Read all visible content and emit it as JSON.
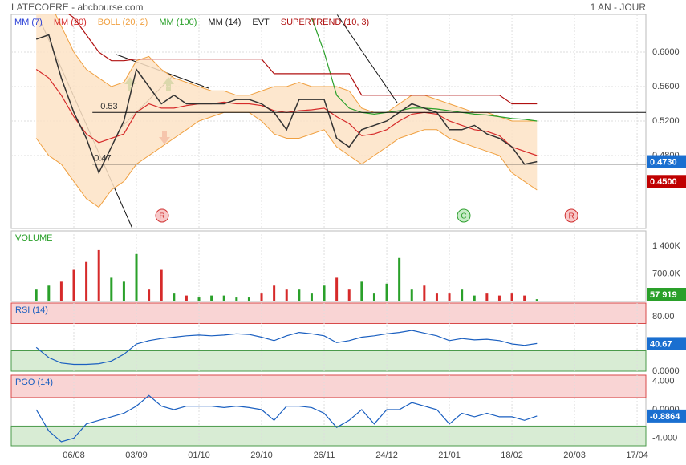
{
  "header": {
    "title": "LATECOERE - abcbourse.com",
    "period": "1 AN - JOUR"
  },
  "chart_data": [
    {
      "type": "line",
      "x": [
        8,
        12,
        16,
        20,
        24,
        28,
        32,
        36,
        40,
        44,
        48,
        52,
        56,
        60,
        64,
        68,
        72,
        76,
        80,
        84,
        88,
        92,
        96,
        100,
        104,
        108,
        112,
        116,
        120,
        124,
        128,
        132,
        136,
        140,
        144,
        148,
        152,
        156,
        160,
        164,
        168
      ],
      "xlim": [
        0,
        202.8
      ],
      "xticks": [
        {
          "value": 20,
          "label": "06/08"
        },
        {
          "value": 40,
          "label": "03/09"
        },
        {
          "value": 60,
          "label": "01/10"
        },
        {
          "value": 80,
          "label": "29/10"
        },
        {
          "value": 100,
          "label": "26/11"
        },
        {
          "value": 120,
          "label": "24/12"
        },
        {
          "value": 140,
          "label": "21/01"
        },
        {
          "value": 160,
          "label": "18/02"
        },
        {
          "value": 180,
          "label": "20/03"
        },
        {
          "value": 200,
          "label": "17/04"
        }
      ],
      "ylim": [
        0.3954,
        0.6437
      ],
      "yticks": [
        {
          "value": 0.6,
          "label": "0.6000"
        },
        {
          "value": 0.56,
          "label": "0.5600"
        },
        {
          "value": 0.52,
          "label": "0.5200"
        },
        {
          "value": 0.48,
          "label": "0.4800"
        }
      ],
      "grid": true,
      "price": {
        "color": "#333333",
        "values": [
          0.615,
          0.62,
          0.57,
          0.53,
          0.5,
          0.46,
          0.49,
          0.52,
          0.58,
          0.56,
          0.54,
          0.55,
          0.54,
          0.54,
          0.54,
          0.54,
          0.545,
          0.545,
          0.54,
          0.53,
          0.51,
          0.545,
          0.545,
          0.545,
          0.5,
          0.49,
          0.51,
          0.515,
          0.52,
          0.53,
          0.54,
          0.535,
          0.53,
          0.51,
          0.51,
          0.515,
          0.505,
          0.5,
          0.49,
          0.47,
          0.473
        ]
      },
      "series": [
        {
          "name": "MM (7)",
          "color": "#2a3fd6"
        },
        {
          "name": "MM (20)",
          "color": "#d62a2a",
          "values": [
            0.58,
            0.57,
            0.55,
            0.525,
            0.505,
            0.495,
            0.5,
            0.505,
            0.53,
            0.54,
            0.535,
            0.535,
            0.538,
            0.54,
            0.54,
            0.542,
            0.54,
            0.54,
            0.538,
            0.532,
            0.53,
            0.532,
            0.533,
            0.535,
            0.525,
            0.517,
            0.503,
            0.505,
            0.51,
            0.52,
            0.528,
            0.53,
            0.528,
            0.52,
            0.515,
            0.51,
            0.508,
            0.503,
            0.49,
            0.485,
            0.48
          ]
        },
        {
          "name": "BOLL (20, 2)",
          "color": "#f0a040",
          "upper": [
            0.66,
            0.66,
            0.63,
            0.6,
            0.58,
            0.57,
            0.56,
            0.565,
            0.59,
            0.595,
            0.58,
            0.57,
            0.565,
            0.56,
            0.555,
            0.555,
            0.55,
            0.55,
            0.555,
            0.56,
            0.56,
            0.565,
            0.56,
            0.56,
            0.56,
            0.555,
            0.535,
            0.53,
            0.53,
            0.54,
            0.55,
            0.55,
            0.545,
            0.54,
            0.535,
            0.53,
            0.53,
            0.525,
            0.52,
            0.52,
            0.52
          ],
          "lower": [
            0.5,
            0.48,
            0.47,
            0.45,
            0.43,
            0.42,
            0.44,
            0.45,
            0.47,
            0.48,
            0.49,
            0.5,
            0.51,
            0.52,
            0.525,
            0.53,
            0.53,
            0.53,
            0.52,
            0.505,
            0.5,
            0.5,
            0.505,
            0.51,
            0.49,
            0.48,
            0.47,
            0.48,
            0.49,
            0.5,
            0.505,
            0.51,
            0.51,
            0.5,
            0.495,
            0.49,
            0.485,
            0.48,
            0.46,
            0.45,
            0.44
          ]
        },
        {
          "name": "MM (100)",
          "color": "#2aa02a",
          "values": [
            null,
            null,
            null,
            null,
            null,
            null,
            null,
            null,
            null,
            null,
            null,
            null,
            null,
            null,
            null,
            null,
            null,
            null,
            null,
            null,
            null,
            null,
            0.64,
            0.6,
            0.55,
            0.535,
            0.53,
            0.528,
            0.53,
            0.532,
            0.535,
            0.535,
            0.534,
            0.532,
            0.53,
            0.528,
            0.527,
            0.525,
            0.523,
            0.522,
            0.52
          ]
        },
        {
          "name": "MM (14)",
          "color": "#222222"
        },
        {
          "name": "EVT",
          "color": "#222222"
        },
        {
          "name": "SUPERTREND (10, 3)",
          "color": "#b01010",
          "values": [
            0.66,
            0.66,
            0.65,
            0.64,
            0.62,
            0.6,
            0.59,
            0.59,
            0.592,
            0.592,
            0.592,
            0.592,
            0.592,
            0.592,
            0.592,
            0.592,
            0.592,
            0.592,
            0.592,
            0.575,
            0.575,
            0.575,
            0.575,
            0.575,
            0.575,
            0.575,
            0.55,
            0.55,
            0.55,
            0.55,
            0.55,
            0.55,
            0.55,
            0.55,
            0.55,
            0.55,
            0.55,
            0.55,
            0.54,
            0.54,
            0.54
          ]
        }
      ],
      "levels": [
        0.53,
        0.47
      ],
      "last_prices": [
        {
          "value": 0.473,
          "label": "0.4730",
          "color": "#1a6fd0"
        },
        {
          "value": 0.45,
          "label": "0.4500",
          "color": "#c00000"
        }
      ],
      "signals": [
        {
          "x": 48.2,
          "label": "R",
          "color": "#d03030"
        },
        {
          "x": 144.6,
          "label": "C",
          "color": "#30a030"
        },
        {
          "x": 179,
          "label": "R",
          "color": "#d03030"
        }
      ]
    },
    {
      "type": "bar",
      "title": "VOLUME",
      "x": [
        8,
        12,
        16,
        20,
        24,
        28,
        32,
        36,
        40,
        44,
        48,
        52,
        56,
        60,
        64,
        68,
        72,
        76,
        80,
        84,
        88,
        92,
        96,
        100,
        104,
        108,
        112,
        116,
        120,
        124,
        128,
        132,
        136,
        140,
        144,
        148,
        152,
        156,
        160,
        164,
        168
      ],
      "ylim": [
        0,
        1785000
      ],
      "yticks": [
        {
          "value": 1400000,
          "label": "1 400K"
        },
        {
          "value": 700000,
          "label": "700.0K"
        }
      ],
      "up_color": "#2aa02a",
      "down_color": "#d62a2a",
      "values": [
        300000,
        400000,
        500000,
        800000,
        1000000,
        1300000,
        600000,
        500000,
        1200000,
        300000,
        800000,
        200000,
        150000,
        100000,
        150000,
        150000,
        100000,
        100000,
        200000,
        400000,
        300000,
        300000,
        200000,
        400000,
        600000,
        300000,
        500000,
        200000,
        450000,
        1100000,
        300000,
        400000,
        200000,
        200000,
        300000,
        150000,
        200000,
        150000,
        200000,
        150000,
        57919
      ],
      "value_labels": {
        "40": "57 919"
      },
      "last_color": "#2aa02a"
    },
    {
      "type": "line",
      "title": "RSI (14)",
      "color": "#1a5fc0",
      "x": [
        8,
        12,
        16,
        20,
        24,
        28,
        32,
        36,
        40,
        44,
        48,
        52,
        56,
        60,
        64,
        68,
        72,
        76,
        80,
        84,
        88,
        92,
        96,
        100,
        104,
        108,
        112,
        116,
        120,
        124,
        128,
        132,
        136,
        140,
        144,
        148,
        152,
        156,
        160,
        164,
        168
      ],
      "ylim": [
        0,
        100
      ],
      "yticks": [
        {
          "value": 80,
          "label": "80.00"
        },
        {
          "value": 0,
          "label": "0.0000"
        }
      ],
      "zones": {
        "high": 70,
        "low": 30
      },
      "values": [
        35,
        20,
        12,
        10,
        10,
        11,
        15,
        25,
        40,
        45,
        48,
        50,
        52,
        53,
        52,
        53,
        55,
        54,
        50,
        45,
        52,
        57,
        55,
        52,
        42,
        45,
        50,
        52,
        55,
        57,
        60,
        56,
        52,
        45,
        48,
        46,
        47,
        45,
        40,
        38,
        40.67
      ],
      "last_color": "#1a6fd0"
    },
    {
      "type": "line",
      "title": "PGO (14)",
      "color": "#1a5fc0",
      "x": [
        8,
        12,
        16,
        20,
        24,
        28,
        32,
        36,
        40,
        44,
        48,
        52,
        56,
        60,
        64,
        68,
        72,
        76,
        80,
        84,
        88,
        92,
        96,
        100,
        104,
        108,
        112,
        116,
        120,
        124,
        128,
        132,
        136,
        140,
        144,
        148,
        152,
        156,
        160,
        164,
        168
      ],
      "ylim": [
        -5.07,
        4.85
      ],
      "yticks": [
        {
          "value": 4,
          "label": "4.000"
        },
        {
          "value": 0,
          "label": "0.0000"
        },
        {
          "value": -4,
          "label": "-4.000"
        }
      ],
      "zones": {
        "high": 1.7,
        "low": -2.3
      },
      "values": [
        0,
        -3,
        -4.5,
        -4,
        -2,
        -1.5,
        -1,
        -0.5,
        0.5,
        2,
        0.5,
        0,
        0.5,
        0.5,
        0.5,
        0.3,
        0.5,
        0.3,
        0,
        -1.5,
        0.5,
        0.5,
        0.3,
        -0.5,
        -2.5,
        -1.5,
        0,
        -2,
        0,
        0,
        1,
        0.5,
        0,
        -2,
        -0.5,
        -1,
        -0.5,
        -1,
        -1,
        -1.5,
        -0.8864
      ],
      "last_color": "#1a6fd0"
    }
  ]
}
